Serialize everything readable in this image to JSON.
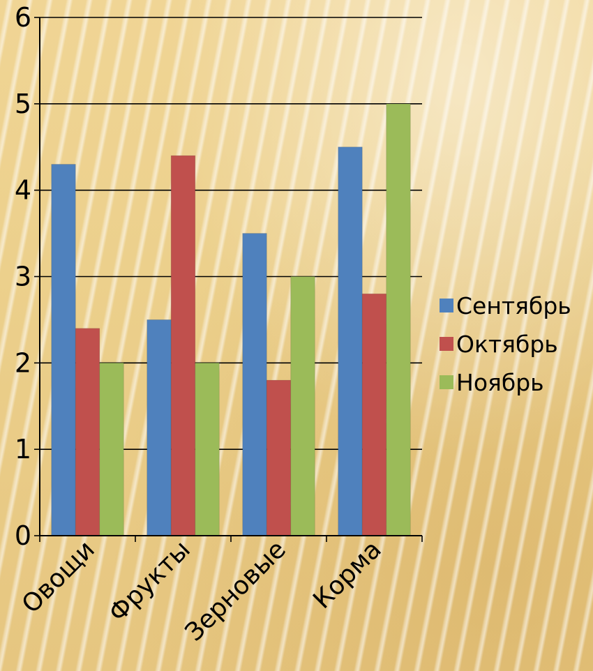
{
  "chart_data": {
    "type": "bar",
    "categories": [
      "Овощи",
      "Фрукты",
      "Зерновые",
      "Корма"
    ],
    "series": [
      {
        "name": "Сентябрь",
        "color": "#4f81bd",
        "values": [
          4.3,
          2.5,
          3.5,
          4.5
        ]
      },
      {
        "name": "Октябрь",
        "color": "#c0504d",
        "values": [
          2.4,
          4.4,
          1.8,
          2.8
        ]
      },
      {
        "name": "Ноябрь",
        "color": "#9bbb59",
        "values": [
          2.0,
          2.0,
          3.0,
          5.0
        ]
      }
    ],
    "ylim": [
      0,
      6
    ],
    "yticks": [
      "0",
      "1",
      "2",
      "3",
      "4",
      "5",
      "6"
    ],
    "grid": true,
    "legend_position": "right",
    "xlabel": "",
    "ylabel": "",
    "title": ""
  }
}
